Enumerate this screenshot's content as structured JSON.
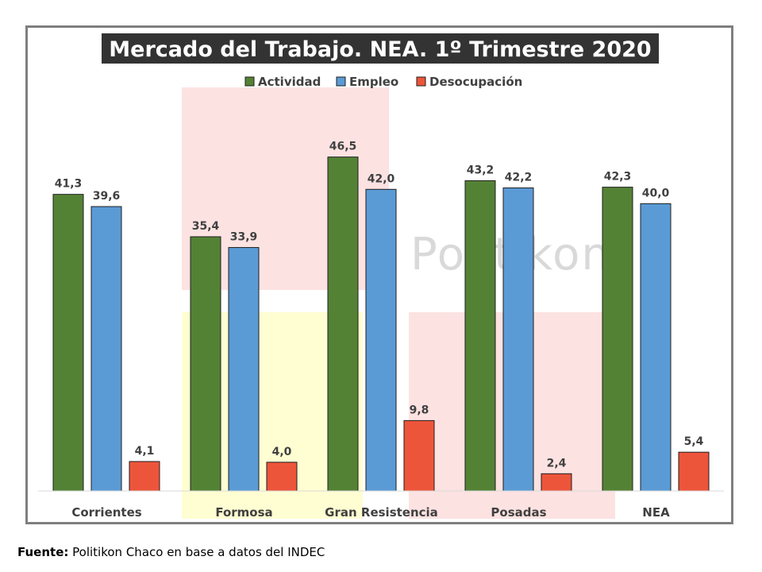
{
  "chart_data": {
    "type": "bar",
    "title": "Mercado del Trabajo. NEA. 1º Trimestre 2020",
    "categories": [
      "Corrientes",
      "Formosa",
      "Gran Resistencia",
      "Posadas",
      "NEA"
    ],
    "series": [
      {
        "name": "Actividad",
        "color": "#548235",
        "values": [
          41.3,
          35.4,
          46.5,
          43.2,
          42.3
        ],
        "labels": [
          "41,3",
          "35,4",
          "46,5",
          "43,2",
          "42,3"
        ]
      },
      {
        "name": "Empleo",
        "color": "#5b9bd5",
        "values": [
          39.6,
          33.9,
          42.0,
          42.2,
          40.0
        ],
        "labels": [
          "39,6",
          "33,9",
          "42,0",
          "42,2",
          "40,0"
        ]
      },
      {
        "name": "Desocupación",
        "color": "#ed553b",
        "values": [
          4.1,
          4.0,
          9.8,
          2.4,
          5.4
        ],
        "labels": [
          "4,1",
          "4,0",
          "9,8",
          "2,4",
          "5,4"
        ]
      }
    ],
    "ylim": [
      0,
      50
    ],
    "grid": false,
    "legend": "top"
  },
  "watermark": "Politikon",
  "source": {
    "label": "Fuente:",
    "text": "Politikon Chaco en base a datos del INDEC"
  },
  "colors": {
    "title_bg": "#333333",
    "frame": "#7f7f7f",
    "text": "#404040"
  }
}
